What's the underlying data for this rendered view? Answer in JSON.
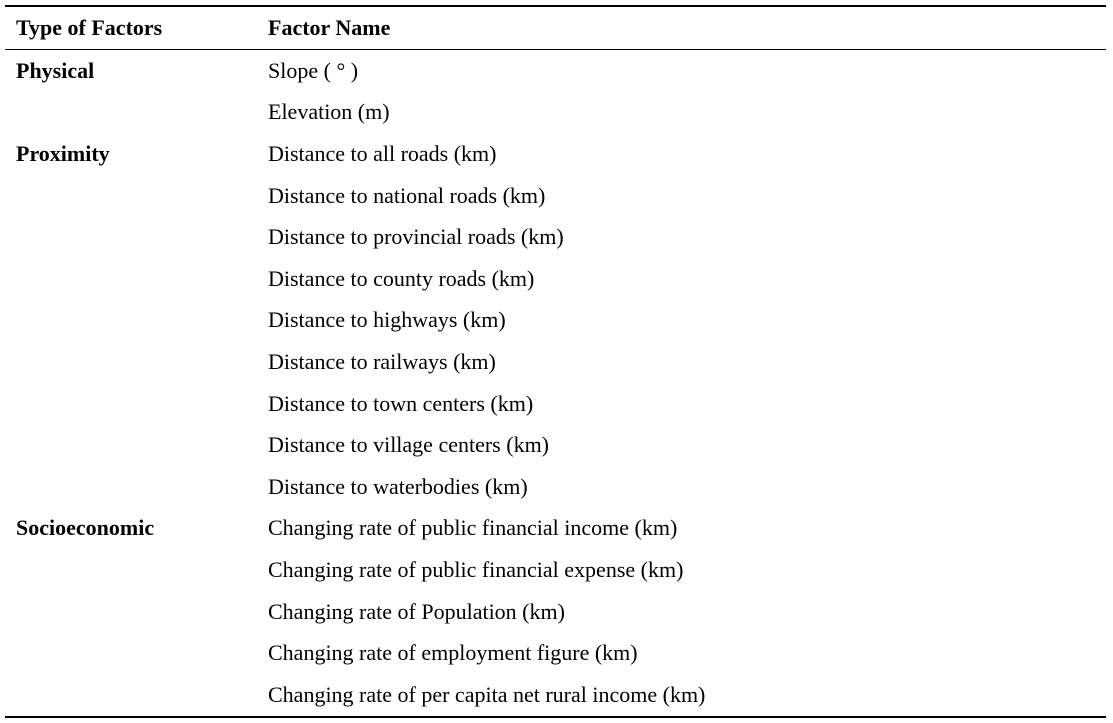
{
  "table": {
    "headers": {
      "type": "Type of Factors",
      "name": "Factor Name"
    },
    "rows": [
      {
        "type": "Physical",
        "name": "Slope (  °  )"
      },
      {
        "type": "",
        "name": "Elevation (m)"
      },
      {
        "type": "Proximity",
        "name": "Distance to all roads (km)"
      },
      {
        "type": "",
        "name": "Distance to national roads (km)"
      },
      {
        "type": "",
        "name": "Distance to provincial roads (km)"
      },
      {
        "type": "",
        "name": "Distance to county roads (km)"
      },
      {
        "type": "",
        "name": "Distance to highways (km)"
      },
      {
        "type": "",
        "name": "Distance to railways (km)"
      },
      {
        "type": "",
        "name": "Distance to town centers (km)"
      },
      {
        "type": "",
        "name": "Distance to village centers (km)"
      },
      {
        "type": "",
        "name": "Distance to waterbodies (km)"
      },
      {
        "type": "Socioeconomic",
        "name": "Changing rate of public financial income (km)"
      },
      {
        "type": "",
        "name": "Changing rate of public financial expense (km)"
      },
      {
        "type": "",
        "name": "Changing rate of Population (km)"
      },
      {
        "type": "",
        "name": "Changing rate of employment figure (km)"
      },
      {
        "type": "",
        "name": "Changing rate of per capita net rural income (km)"
      }
    ]
  }
}
